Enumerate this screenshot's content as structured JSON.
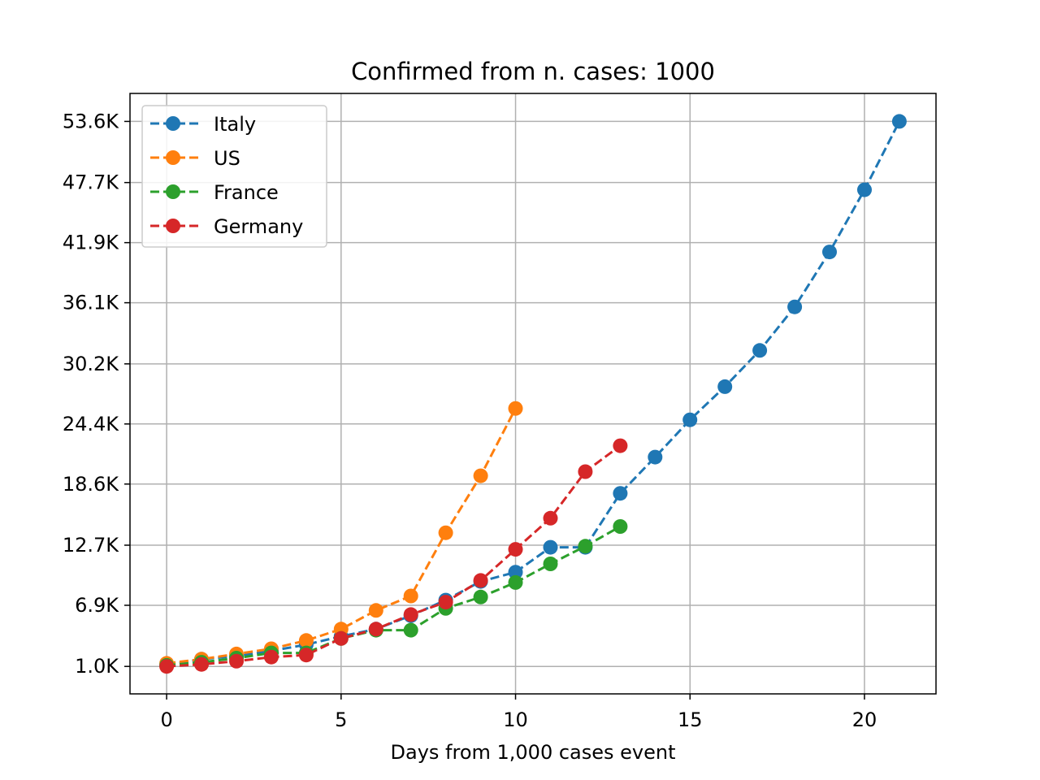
{
  "chart_data": {
    "type": "line",
    "title": "Confirmed from n. cases: 1000",
    "xlabel": "Days from 1,000 cases event",
    "ylabel": "",
    "xlim": [
      -1.05,
      22.05
    ],
    "ylim": [
      -1650,
      56300
    ],
    "xticks": [
      0,
      5,
      10,
      15,
      20
    ],
    "xtick_labels": [
      "0",
      "5",
      "10",
      "15",
      "20"
    ],
    "yticks": [
      1000,
      6900,
      12700,
      18600,
      24400,
      30200,
      36100,
      41900,
      47700,
      53600
    ],
    "ytick_labels": [
      "1.0K",
      "6.9K",
      "12.7K",
      "18.6K",
      "24.4K",
      "30.2K",
      "36.1K",
      "41.9K",
      "47.7K",
      "53.6K"
    ],
    "grid": true,
    "legend_position": "top-left",
    "line_style": "dashed",
    "marker": "circle",
    "series": [
      {
        "name": "Italy",
        "color": "#1f77b4",
        "x": [
          0,
          1,
          2,
          3,
          4,
          5,
          6,
          7,
          8,
          9,
          10,
          11,
          12,
          13,
          14,
          15,
          16,
          17,
          18,
          19,
          20,
          21
        ],
        "values": [
          1100,
          1700,
          2000,
          2500,
          3100,
          3900,
          4600,
          5900,
          7400,
          9200,
          10100,
          12500,
          12500,
          17700,
          21200,
          24800,
          28000,
          31500,
          35700,
          41000,
          47000,
          53600
        ]
      },
      {
        "name": "US",
        "color": "#ff7f0e",
        "x": [
          0,
          1,
          2,
          3,
          4,
          5,
          6,
          7,
          8,
          9,
          10
        ],
        "values": [
          1300,
          1700,
          2200,
          2700,
          3500,
          4600,
          6400,
          7800,
          13900,
          19400,
          25900
        ]
      },
      {
        "name": "France",
        "color": "#2ca02c",
        "x": [
          0,
          1,
          2,
          3,
          4,
          5,
          6,
          7,
          8,
          9,
          10,
          11,
          12,
          13
        ],
        "values": [
          1100,
          1400,
          1800,
          2300,
          2300,
          3700,
          4500,
          4500,
          6600,
          7700,
          9100,
          10900,
          12600,
          14500
        ]
      },
      {
        "name": "Germany",
        "color": "#d62728",
        "x": [
          0,
          1,
          2,
          3,
          4,
          5,
          6,
          7,
          8,
          9,
          10,
          11,
          12,
          13
        ],
        "values": [
          1000,
          1200,
          1500,
          1900,
          2100,
          3700,
          4600,
          6000,
          7200,
          9300,
          12300,
          15300,
          19800,
          22300
        ]
      }
    ]
  }
}
